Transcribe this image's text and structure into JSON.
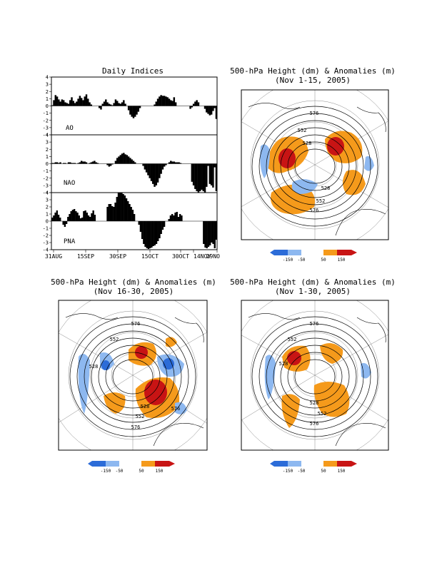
{
  "chart_data": [
    {
      "type": "bar",
      "title": "Daily Indices",
      "x_tick_labels": [
        "31AUG",
        "15SEP",
        "30SEP",
        "15OCT",
        "30OCT",
        "14NOV",
        "29NO"
      ],
      "y_ticks": [
        4,
        3,
        2,
        1,
        0,
        -1,
        -2,
        -3,
        -4
      ],
      "ylim": [
        -4,
        4
      ],
      "series": [
        {
          "name": "AO",
          "values": [
            0.1,
            0.8,
            1.5,
            1.3,
            0.9,
            0.6,
            0.9,
            0.8,
            0.5,
            0.4,
            0.3,
            0.8,
            1.2,
            0.7,
            0.4,
            0.6,
            1.0,
            1.4,
            1.1,
            0.8,
            1.3,
            1.6,
            1.0,
            0.5,
            0.2,
            0.0,
            0.0,
            0.0,
            0.0,
            -0.3,
            -0.5,
            0.3,
            0.6,
            0.9,
            0.5,
            0.3,
            0.2,
            0.1,
            0.4,
            0.9,
            0.7,
            0.4,
            0.3,
            0.5,
            0.8,
            0.3,
            0.0,
            -0.6,
            -1.2,
            -1.5,
            -1.7,
            -1.5,
            -1.2,
            -0.8,
            -0.3,
            0.0,
            0.0,
            0.0,
            0.0,
            0.0,
            0.0,
            0.0,
            0.0,
            0.2,
            0.6,
            1.0,
            1.3,
            1.5,
            1.4,
            1.4,
            1.3,
            1.2,
            1.0,
            0.8,
            0.7,
            1.2,
            0.5,
            0.0,
            0.0,
            0.0,
            0.0,
            0.0,
            0.0,
            0.0,
            0.0,
            -0.4,
            -0.2,
            0.3,
            0.6,
            0.8,
            0.5,
            0.0,
            0.0,
            0.0,
            -0.4,
            -0.9,
            -1.1,
            -1.3,
            -1.2,
            -0.7,
            -0.3,
            -1.8
          ]
        },
        {
          "name": "NAO",
          "values": [
            0.1,
            0.1,
            0.2,
            0.2,
            0.1,
            0.2,
            0.0,
            0.1,
            0.1,
            0.0,
            0.2,
            0.2,
            0.1,
            0.1,
            0.1,
            0.0,
            0.1,
            0.2,
            0.4,
            0.3,
            0.3,
            0.2,
            0.0,
            0.1,
            0.2,
            0.3,
            0.4,
            0.2,
            0.1,
            0.0,
            0.0,
            0.0,
            0.0,
            0.0,
            -0.2,
            -0.4,
            -0.3,
            -0.1,
            0.0,
            0.4,
            0.8,
            1.0,
            1.2,
            1.4,
            1.5,
            1.3,
            1.2,
            1.0,
            0.8,
            0.6,
            0.4,
            0.2,
            0.0,
            0.0,
            0.0,
            0.0,
            -0.3,
            -0.8,
            -1.2,
            -1.6,
            -2.0,
            -2.4,
            -2.8,
            -3.2,
            -3.0,
            -2.6,
            -2.0,
            -1.4,
            -0.8,
            -0.4,
            -0.2,
            0.0,
            0.2,
            0.4,
            0.3,
            0.3,
            0.2,
            0.2,
            0.2,
            0.1,
            0.0,
            0.0,
            0.0,
            0.0,
            0.0,
            0.0,
            -2.5,
            -3.0,
            -3.5,
            -3.8,
            -4.0,
            -3.8,
            -3.6,
            -3.8,
            -4.0,
            -3.2,
            -0.3,
            -2.8,
            -3.0,
            -3.3,
            -0.5,
            -3.8
          ]
        },
        {
          "name": "PNA",
          "values": [
            0.5,
            0.8,
            1.2,
            1.5,
            0.9,
            0.5,
            0.0,
            -0.5,
            -0.8,
            -0.4,
            0.6,
            1.0,
            1.4,
            1.6,
            1.7,
            1.4,
            1.2,
            0.8,
            0.4,
            0.5,
            1.4,
            1.5,
            1.2,
            0.8,
            0.6,
            1.1,
            1.5,
            0.9,
            0.0,
            0.0,
            0.0,
            0.0,
            0.0,
            0.0,
            0.0,
            2.0,
            2.4,
            2.4,
            2.1,
            2.0,
            2.6,
            3.4,
            4.0,
            4.0,
            4.0,
            3.8,
            3.6,
            3.2,
            2.8,
            2.4,
            2.0,
            1.6,
            1.0,
            0.0,
            0.0,
            -0.5,
            -1.5,
            -2.5,
            -3.2,
            -3.6,
            -3.8,
            -3.9,
            -3.8,
            -3.7,
            -3.5,
            -3.4,
            -3.2,
            -2.8,
            -2.4,
            -1.8,
            -1.2,
            -0.8,
            0.0,
            0.0,
            0.3,
            0.8,
            1.0,
            0.8,
            1.2,
            1.3,
            0.6,
            1.0,
            0.8,
            0.0,
            0.0,
            0.0,
            0.0,
            0.0,
            0.0,
            0.0,
            0.0,
            0.0,
            0.0,
            0.0,
            0.0,
            0.0,
            -3.2,
            -3.7,
            -3.8,
            -3.6,
            -3.4,
            -3.0,
            -3.2,
            -3.8,
            -2.6
          ]
        }
      ]
    },
    {
      "type": "map",
      "title_line1": "500-hPa Height (dm) & Anomalies (m)",
      "title_line2": "(Nov 1-15, 2005)",
      "contour_labels": [
        "576",
        "552",
        "528",
        "528",
        "552",
        "576"
      ],
      "colorbar_labels": [
        "-150",
        "-50",
        "50",
        "150"
      ]
    },
    {
      "type": "map",
      "title_line1": "500-hPa Height (dm) & Anomalies (m)",
      "title_line2": "(Nov 16-30, 2005)",
      "contour_labels": [
        "576",
        "552",
        "528",
        "528",
        "552",
        "576",
        "576"
      ],
      "colorbar_labels": [
        "-150",
        "-50",
        "50",
        "150"
      ]
    },
    {
      "type": "map",
      "title_line1": "500-hPa Height (dm) & Anomalies (m)",
      "title_line2": "(Nov 1-30, 2005)",
      "contour_labels": [
        "576",
        "552",
        "528",
        "528",
        "552",
        "576"
      ],
      "colorbar_labels": [
        "-150",
        "-50",
        "50",
        "150"
      ]
    }
  ],
  "colors": {
    "neg_strong": "#2c6cd8",
    "neg_weak": "#8db8f0",
    "pos_weak": "#f59a1b",
    "pos_strong": "#c81414",
    "bars": "#000000"
  }
}
